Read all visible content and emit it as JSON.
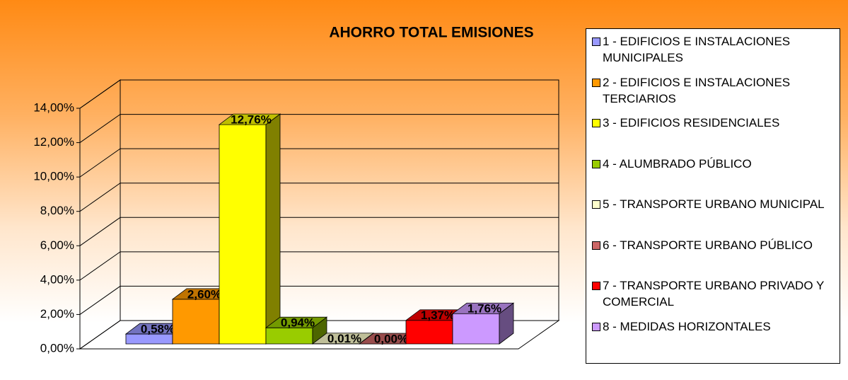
{
  "chart_data": {
    "type": "bar3d",
    "title": "AHORRO TOTAL EMISIONES",
    "categories": [
      "1 - EDIFICIOS E INSTALACIONES MUNICIPALES",
      "2 - EDIFICIOS E INSTALACIONES TERCIARIOS",
      "3 - EDIFICIOS RESIDENCIALES",
      "4 - ALUMBRADO PÚBLICO",
      "5 - TRANSPORTE URBANO MUNICIPAL",
      "6 - TRANSPORTE URBANO PÚBLICO",
      "7 - TRANSPORTE URBANO PRIVADO Y COMERCIAL",
      "8 - MEDIDAS HORIZONTALES"
    ],
    "values": [
      0.58,
      2.6,
      12.76,
      0.94,
      0.01,
      0.0,
      1.37,
      1.76
    ],
    "value_labels": [
      "0,58%",
      "2,60%",
      "12,76%",
      "0,94%",
      "0,01%",
      "0,00%",
      "1,37%",
      "1,76%"
    ],
    "colors": [
      "#9999ff",
      "#ff9900",
      "#ffff00",
      "#99cc00",
      "#ffffcc",
      "#cc6666",
      "#ff0000",
      "#cc99ff"
    ],
    "ylim": [
      0,
      14
    ],
    "yticks": [
      {
        "value": 0,
        "label": "0,00%"
      },
      {
        "value": 2,
        "label": "2,00%"
      },
      {
        "value": 4,
        "label": "4,00%"
      },
      {
        "value": 6,
        "label": "6,00%"
      },
      {
        "value": 8,
        "label": "8,00%"
      },
      {
        "value": 10,
        "label": "10,00%"
      },
      {
        "value": 12,
        "label": "12,00%"
      },
      {
        "value": 14,
        "label": "14,00%"
      }
    ],
    "grid": true,
    "legend": "right"
  }
}
